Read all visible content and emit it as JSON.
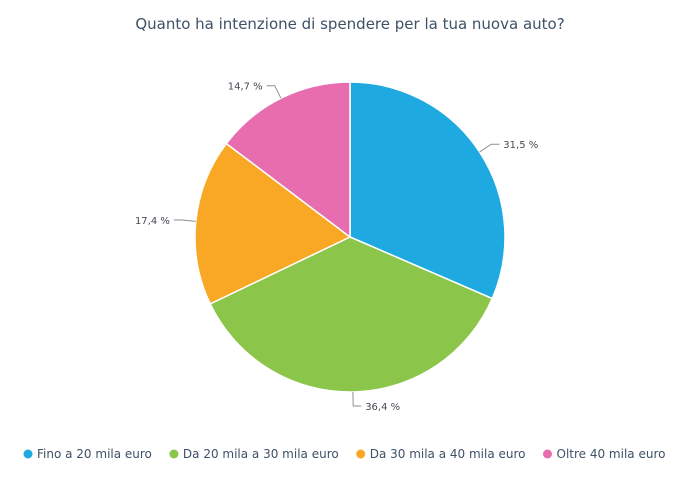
{
  "chart_data": {
    "type": "pie",
    "title": "Quanto ha intenzione di spendere per la tua nuova auto?",
    "slices": [
      {
        "label": "Fino a 20 mila euro",
        "value": 31.5,
        "display": "31,5 %",
        "color": "#1fa9e1"
      },
      {
        "label": "Da 20 mila a 30 mila euro",
        "value": 36.4,
        "display": "36,4 %",
        "color": "#8bc54a"
      },
      {
        "label": "Da 30 mila a 40 mila euro",
        "value": 17.4,
        "display": "17,4 %",
        "color": "#f9a825"
      },
      {
        "label": "Oltre 40 mila euro",
        "value": 14.7,
        "display": "14,7 %",
        "color": "#e76daf"
      }
    ],
    "legend": {
      "position": "bottom"
    },
    "start_angle_deg": 0,
    "direction": "clockwise"
  }
}
